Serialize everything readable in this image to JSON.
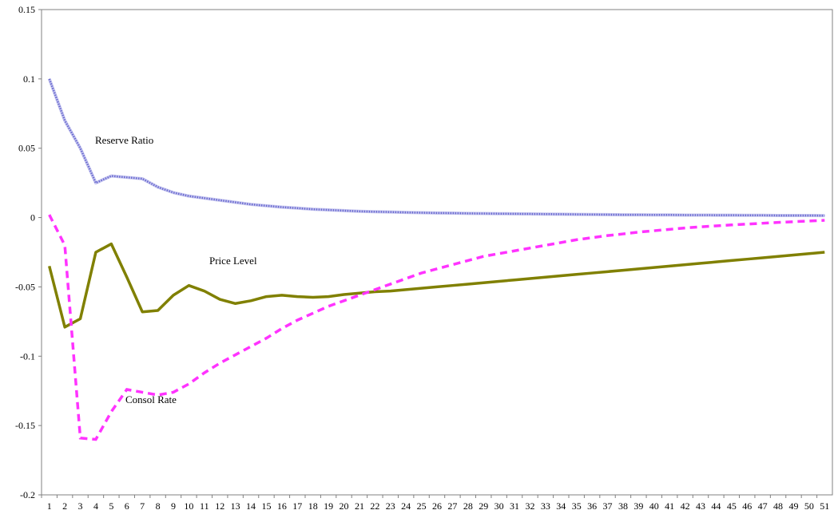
{
  "chart_data": {
    "type": "line",
    "title": "",
    "xlabel": "",
    "ylabel": "",
    "x": [
      1,
      2,
      3,
      4,
      5,
      6,
      7,
      8,
      9,
      10,
      11,
      12,
      13,
      14,
      15,
      16,
      17,
      18,
      19,
      20,
      21,
      22,
      23,
      24,
      25,
      26,
      27,
      28,
      29,
      30,
      31,
      32,
      33,
      34,
      35,
      36,
      37,
      38,
      39,
      40,
      41,
      42,
      43,
      44,
      45,
      46,
      47,
      48,
      49,
      50,
      51
    ],
    "ylim": [
      -0.2,
      0.15
    ],
    "yticks": [
      "0.15",
      "0.1",
      "0.05",
      "0",
      "-0.05",
      "-0.1",
      "-0.15",
      "-0.2"
    ],
    "ytick_values": [
      0.15,
      0.1,
      0.05,
      0,
      -0.05,
      -0.1,
      -0.15,
      -0.2
    ],
    "grid": false,
    "legend": "none",
    "series": [
      {
        "name": "Reserve Ratio",
        "color": "#6b6bd0",
        "style": "dotted-thick",
        "values": [
          0.1,
          0.07,
          0.05,
          0.025,
          0.03,
          0.029,
          0.028,
          0.022,
          0.018,
          0.0155,
          0.014,
          0.0125,
          0.011,
          0.0095,
          0.0085,
          0.0075,
          0.0068,
          0.006,
          0.0055,
          0.005,
          0.0045,
          0.0042,
          0.004,
          0.0037,
          0.0035,
          0.0033,
          0.0032,
          0.003,
          0.0029,
          0.0028,
          0.0027,
          0.0026,
          0.0025,
          0.0024,
          0.0023,
          0.0022,
          0.0021,
          0.002,
          0.002,
          0.0019,
          0.0019,
          0.0018,
          0.0018,
          0.0017,
          0.0017,
          0.0016,
          0.0016,
          0.0015,
          0.0015,
          0.0015,
          0.0014
        ]
      },
      {
        "name": "Price Level",
        "color": "#808000",
        "style": "solid",
        "values": [
          -0.035,
          -0.079,
          -0.073,
          -0.025,
          -0.019,
          -0.043,
          -0.068,
          -0.067,
          -0.056,
          -0.049,
          -0.053,
          -0.059,
          -0.062,
          -0.06,
          -0.057,
          -0.056,
          -0.057,
          -0.0575,
          -0.057,
          -0.0555,
          -0.0545,
          -0.0535,
          -0.053,
          -0.052,
          -0.051,
          -0.05,
          -0.049,
          -0.048,
          -0.047,
          -0.046,
          -0.045,
          -0.044,
          -0.043,
          -0.042,
          -0.041,
          -0.04,
          -0.039,
          -0.038,
          -0.037,
          -0.036,
          -0.035,
          -0.034,
          -0.033,
          -0.032,
          -0.031,
          -0.03,
          -0.029,
          -0.028,
          -0.027,
          -0.026,
          -0.025
        ]
      },
      {
        "name": "Consol Rate",
        "color": "#ff33ff",
        "style": "dashed",
        "values": [
          0.002,
          -0.02,
          -0.159,
          -0.16,
          -0.14,
          -0.124,
          -0.126,
          -0.128,
          -0.126,
          -0.12,
          -0.112,
          -0.105,
          -0.099,
          -0.093,
          -0.087,
          -0.08,
          -0.074,
          -0.069,
          -0.064,
          -0.06,
          -0.056,
          -0.052,
          -0.048,
          -0.044,
          -0.04,
          -0.037,
          -0.034,
          -0.031,
          -0.028,
          -0.026,
          -0.024,
          -0.022,
          -0.02,
          -0.018,
          -0.016,
          -0.0145,
          -0.013,
          -0.0118,
          -0.0105,
          -0.0095,
          -0.0085,
          -0.0075,
          -0.0067,
          -0.006,
          -0.0053,
          -0.0047,
          -0.0041,
          -0.0035,
          -0.003,
          -0.0025,
          -0.002
        ]
      }
    ],
    "annotations": [
      "Reserve Ratio",
      "Price Level",
      "Consol Rate"
    ]
  }
}
